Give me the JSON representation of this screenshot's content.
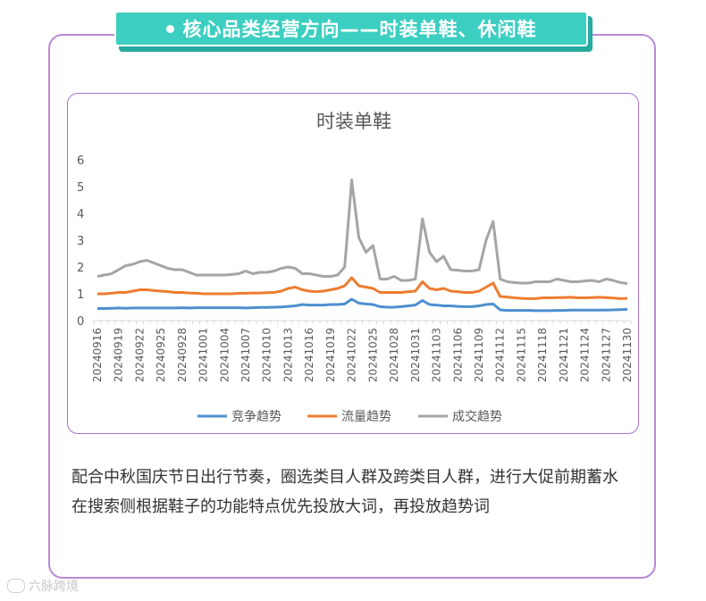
{
  "header": {
    "title": "核心品类经营方向——时装单鞋、休闲鞋"
  },
  "chart_data": {
    "type": "line",
    "title": "时装单鞋",
    "xlabel": "",
    "ylabel": "",
    "ylim": [
      0,
      6
    ],
    "yticks": [
      "0",
      "1",
      "2",
      "3",
      "4",
      "5",
      "6"
    ],
    "grid": false,
    "legend": "bottom",
    "x": [
      "20240916",
      "20240917",
      "20240918",
      "20240919",
      "20240920",
      "20240921",
      "20240922",
      "20240923",
      "20240924",
      "20240925",
      "20240926",
      "20240927",
      "20240928",
      "20240929",
      "20240930",
      "20241001",
      "20241002",
      "20241003",
      "20241004",
      "20241005",
      "20241006",
      "20241007",
      "20241008",
      "20241009",
      "20241010",
      "20241011",
      "20241012",
      "20241013",
      "20241014",
      "20241015",
      "20241016",
      "20241017",
      "20241018",
      "20241019",
      "20241020",
      "20241021",
      "20241022",
      "20241023",
      "20241024",
      "20241025",
      "20241026",
      "20241027",
      "20241028",
      "20241029",
      "20241030",
      "20241031",
      "20241101",
      "20241102",
      "20241103",
      "20241104",
      "20241105",
      "20241106",
      "20241107",
      "20241108",
      "20241109",
      "20241110",
      "20241111",
      "20241112",
      "20241113",
      "20241114",
      "20241115",
      "20241116",
      "20241117",
      "20241118",
      "20241119",
      "20241120",
      "20241121",
      "20241122",
      "20241123",
      "20241124",
      "20241125",
      "20241126",
      "20241127",
      "20241128",
      "20241129",
      "20241130"
    ],
    "xtick_labels": [
      "20240916",
      "20240919",
      "20240922",
      "20240925",
      "20240928",
      "20241001",
      "20241004",
      "20241007",
      "20241010",
      "20241013",
      "20241016",
      "20241019",
      "20241022",
      "20241025",
      "20241028",
      "20241031",
      "20241103",
      "20241106",
      "20241109",
      "20241112",
      "20241115",
      "20241118",
      "20241121",
      "20241124",
      "20241127",
      "20241130"
    ],
    "series": [
      {
        "name": "竞争趋势",
        "color": "#4e8fcf",
        "values": [
          0.45,
          0.45,
          0.46,
          0.47,
          0.46,
          0.47,
          0.47,
          0.47,
          0.47,
          0.47,
          0.47,
          0.47,
          0.48,
          0.47,
          0.48,
          0.48,
          0.48,
          0.48,
          0.48,
          0.48,
          0.48,
          0.47,
          0.48,
          0.49,
          0.49,
          0.5,
          0.51,
          0.53,
          0.55,
          0.6,
          0.58,
          0.58,
          0.58,
          0.6,
          0.6,
          0.62,
          0.8,
          0.65,
          0.62,
          0.6,
          0.52,
          0.5,
          0.5,
          0.52,
          0.55,
          0.58,
          0.75,
          0.6,
          0.58,
          0.55,
          0.55,
          0.53,
          0.52,
          0.52,
          0.55,
          0.6,
          0.62,
          0.4,
          0.38,
          0.38,
          0.38,
          0.38,
          0.37,
          0.37,
          0.37,
          0.38,
          0.38,
          0.39,
          0.39,
          0.39,
          0.39,
          0.39,
          0.39,
          0.4,
          0.41,
          0.42
        ]
      },
      {
        "name": "流量趋势",
        "color": "#ed7d31",
        "values": [
          1.0,
          1.0,
          1.02,
          1.05,
          1.05,
          1.1,
          1.15,
          1.15,
          1.12,
          1.1,
          1.08,
          1.05,
          1.05,
          1.03,
          1.02,
          1.0,
          1.0,
          1.0,
          1.0,
          1.0,
          1.02,
          1.02,
          1.03,
          1.03,
          1.04,
          1.05,
          1.1,
          1.2,
          1.25,
          1.15,
          1.1,
          1.08,
          1.1,
          1.15,
          1.2,
          1.3,
          1.6,
          1.3,
          1.25,
          1.2,
          1.05,
          1.05,
          1.05,
          1.05,
          1.08,
          1.1,
          1.45,
          1.2,
          1.15,
          1.2,
          1.1,
          1.08,
          1.05,
          1.05,
          1.1,
          1.25,
          1.4,
          0.9,
          0.88,
          0.85,
          0.83,
          0.82,
          0.82,
          0.85,
          0.85,
          0.86,
          0.86,
          0.87,
          0.85,
          0.85,
          0.86,
          0.87,
          0.86,
          0.84,
          0.82,
          0.83
        ]
      },
      {
        "name": "成交趋势",
        "color": "#a5a5a5",
        "values": [
          1.65,
          1.7,
          1.75,
          1.9,
          2.05,
          2.1,
          2.2,
          2.25,
          2.15,
          2.05,
          1.95,
          1.9,
          1.9,
          1.8,
          1.7,
          1.7,
          1.7,
          1.7,
          1.7,
          1.72,
          1.75,
          1.85,
          1.75,
          1.8,
          1.8,
          1.85,
          1.95,
          2.0,
          1.95,
          1.75,
          1.75,
          1.7,
          1.65,
          1.65,
          1.7,
          2.0,
          5.25,
          3.1,
          2.55,
          2.8,
          1.55,
          1.55,
          1.65,
          1.5,
          1.5,
          1.55,
          3.8,
          2.55,
          2.2,
          2.4,
          1.9,
          1.88,
          1.85,
          1.85,
          1.9,
          3.0,
          3.7,
          1.55,
          1.45,
          1.42,
          1.4,
          1.4,
          1.45,
          1.45,
          1.45,
          1.55,
          1.5,
          1.45,
          1.45,
          1.48,
          1.5,
          1.45,
          1.55,
          1.5,
          1.42,
          1.38
        ]
      }
    ]
  },
  "description": {
    "lines": [
      "配合中秋国庆节日出行节奏，圈选类目人群及跨类目人群，进行大促前期蓄水",
      "在搜索侧根据鞋子的功能特点优先投放大词，再投放趋势词"
    ]
  },
  "watermark": {
    "text": "六脉跨境"
  }
}
